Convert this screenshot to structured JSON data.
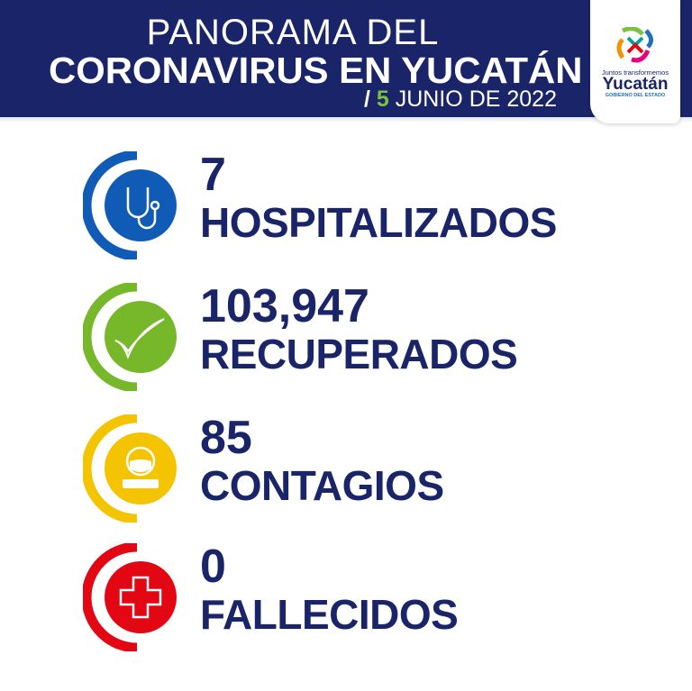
{
  "header": {
    "title_line1": "PANORAMA DEL",
    "title_line2": "CORONAVIRUS EN YUCATÁN",
    "date_slash": "/",
    "date_day": "5",
    "date_rest": "JUNIO DE 2022"
  },
  "logo": {
    "tagline": "Juntos transformemos",
    "name": "Yucatán",
    "subtitle": "GOBIERNO DEL ESTADO"
  },
  "stats": [
    {
      "value": "7",
      "label": "HOSPITALIZADOS",
      "color": "#0f5bb5",
      "icon": "stethoscope-icon"
    },
    {
      "value": "103,947",
      "label": "RECUPERADOS",
      "color": "#76b82a",
      "icon": "checkmark-icon"
    },
    {
      "value": "85",
      "label": "CONTAGIOS",
      "color": "#f5c400",
      "icon": "masked-person-icon"
    },
    {
      "value": "0",
      "label": "FALLECIDOS",
      "color": "#e30613",
      "icon": "medical-cross-icon"
    }
  ]
}
